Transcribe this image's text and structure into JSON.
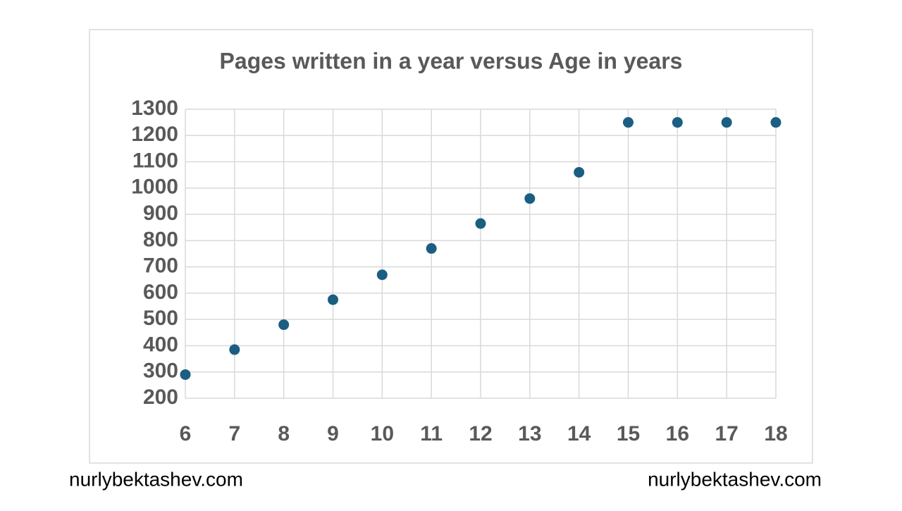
{
  "chart_data": {
    "type": "scatter",
    "title": "Pages written in a year versus Age in years",
    "x": [
      6,
      7,
      8,
      9,
      10,
      11,
      12,
      13,
      14,
      15,
      16,
      17,
      18
    ],
    "series": [
      {
        "color": "#1b5e82",
        "values": [
          290,
          385,
          480,
          575,
          670,
          770,
          865,
          960,
          1060,
          1250,
          1250,
          1250,
          1250
        ]
      }
    ],
    "xlim": [
      6,
      18
    ],
    "xticks": [
      6,
      7,
      8,
      9,
      10,
      11,
      12,
      13,
      14,
      15,
      16,
      17,
      18
    ],
    "ylim": [
      200,
      1300
    ],
    "yticks": [
      200,
      300,
      400,
      500,
      600,
      700,
      800,
      900,
      1000,
      1100,
      1200,
      1300
    ],
    "grid": true
  },
  "watermarks": [
    "nurlybektashev.com",
    "nurlybektashev.com"
  ]
}
